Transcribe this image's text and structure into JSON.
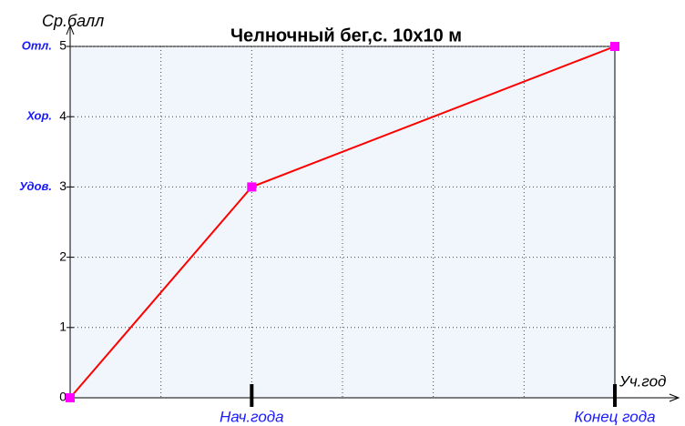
{
  "chart_data": {
    "type": "line",
    "title": "Челночный бег,с. 10х10 м",
    "y_label": "Ср.балл",
    "x_label": "Уч.год",
    "x": [
      0,
      2,
      6
    ],
    "series": [
      {
        "color": "#ff0000",
        "marker_color": "#ff00ff",
        "values": [
          0,
          3,
          5
        ]
      }
    ],
    "xlim": [
      0,
      6
    ],
    "xticks": [
      {
        "value": 2,
        "label": "Нач.года"
      },
      {
        "value": 6,
        "label": "Конец года"
      }
    ],
    "xgrid": [
      1,
      2,
      3,
      4,
      5
    ],
    "ylim": [
      0,
      5
    ],
    "yticks": [
      0,
      1,
      2,
      3,
      4,
      5
    ],
    "grade_labels": [
      {
        "value": 5,
        "label": "Отл."
      },
      {
        "value": 4,
        "label": "Хор."
      },
      {
        "value": 3,
        "label": "Удов."
      }
    ],
    "grid": true
  }
}
